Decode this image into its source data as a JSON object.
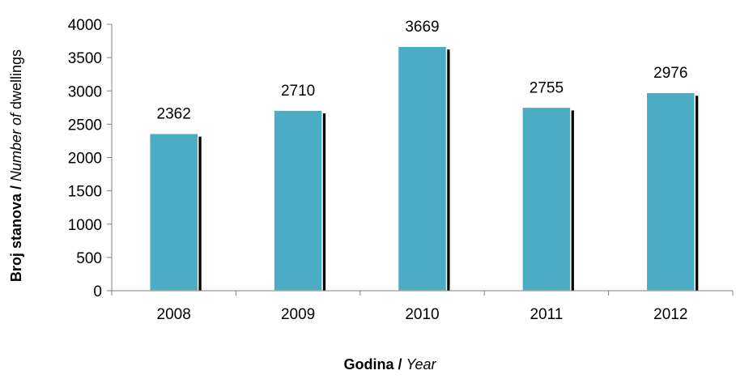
{
  "chart_data": {
    "type": "bar",
    "categories": [
      "2008",
      "2009",
      "2010",
      "2011",
      "2012"
    ],
    "values": [
      2362,
      2710,
      3669,
      2755,
      2976
    ],
    "data_labels": [
      "2362",
      "2710",
      "3669",
      "2755",
      "2976"
    ],
    "ylim": [
      0,
      4000
    ],
    "yticks": [
      0,
      500,
      1000,
      1500,
      2000,
      2500,
      3000,
      3500,
      4000
    ],
    "ytick_labels": [
      "0",
      "500",
      "1000",
      "1500",
      "2000",
      "2500",
      "3000",
      "3500",
      "4000"
    ],
    "ylabel": {
      "bold_part": "Broj stanova / ",
      "italic_part": "Number of",
      "normal_part": " dwellings"
    },
    "xlabel": {
      "bold_part": "Godina / ",
      "italic_part": "Year"
    },
    "grid": false,
    "legend": "none",
    "bar_color": "#4BACC6",
    "shadow_color": "#000000",
    "axis_color": "#808080"
  }
}
